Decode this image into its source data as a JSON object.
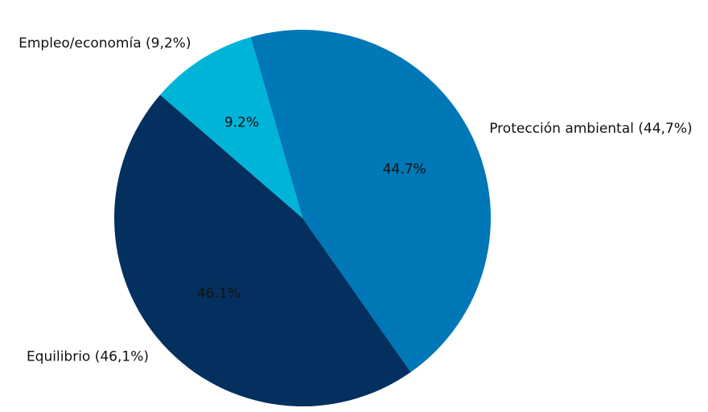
{
  "chart_data": {
    "type": "pie",
    "title": "",
    "slices": [
      {
        "category": "Protección ambiental",
        "value": 44.7,
        "label": "Protección ambiental (44,7%)",
        "pct_text": "44.7%",
        "color": "#0077b6",
        "label_side": "right"
      },
      {
        "category": "Equilibrio",
        "value": 46.1,
        "label": "Equilibrio (46,1%)",
        "pct_text": "46.1%",
        "color": "#03305f",
        "label_side": "left"
      },
      {
        "category": "Empleo/economía",
        "value": 9.2,
        "label": "Empleo/economía (9,2%)",
        "pct_text": "9.2%",
        "color": "#00b4d8",
        "label_side": "left"
      }
    ],
    "start_angle_deg": 106,
    "direction": "clockwise",
    "legend": "none"
  }
}
